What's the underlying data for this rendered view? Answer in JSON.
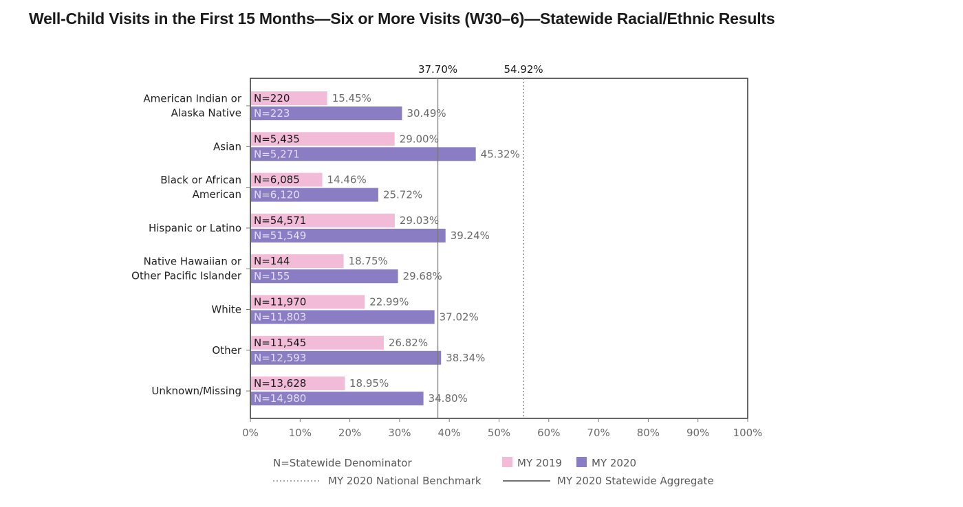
{
  "title": "Well-Child Visits in the First 15 Months—Six or More Visits (W30–6)—Statewide Racial/Ethnic Results",
  "colors": {
    "my2019": "#f2bcd8",
    "my2020": "#8a7dc3",
    "axis": "#333333",
    "grid_text": "#6b6b6b"
  },
  "chart_data": {
    "type": "bar",
    "orientation": "horizontal",
    "categories": [
      [
        "American Indian or",
        "Alaska Native"
      ],
      [
        "Asian"
      ],
      [
        "Black or African",
        "American"
      ],
      [
        "Hispanic or Latino"
      ],
      [
        "Native Hawaiian or",
        "Other Pacific Islander"
      ],
      [
        "White"
      ],
      [
        "Other"
      ],
      [
        "Unknown/Missing"
      ]
    ],
    "series": [
      {
        "name": "MY 2019",
        "values": [
          15.45,
          29.0,
          14.46,
          29.03,
          18.75,
          22.99,
          26.82,
          18.95
        ],
        "value_labels": [
          "15.45%",
          "29.00%",
          "14.46%",
          "29.03%",
          "18.75%",
          "22.99%",
          "26.82%",
          "18.95%"
        ],
        "n_labels": [
          "N=220",
          "N=5,435",
          "N=6,085",
          "N=54,571",
          "N=144",
          "N=11,970",
          "N=11,545",
          "N=13,628"
        ]
      },
      {
        "name": "MY 2020",
        "values": [
          30.49,
          45.32,
          25.72,
          39.24,
          29.68,
          37.02,
          38.34,
          34.8
        ],
        "value_labels": [
          "30.49%",
          "45.32%",
          "25.72%",
          "39.24%",
          "29.68%",
          "37.02%",
          "38.34%",
          "34.80%"
        ],
        "n_labels": [
          "N=223",
          "N=5,271",
          "N=6,120",
          "N=51,549",
          "N=155",
          "N=11,803",
          "N=12,593",
          "N=14,980"
        ]
      }
    ],
    "xlim": [
      0,
      100
    ],
    "x_ticks": [
      "0%",
      "10%",
      "20%",
      "30%",
      "40%",
      "50%",
      "60%",
      "70%",
      "80%",
      "90%",
      "100%"
    ],
    "reference_lines": [
      {
        "name": "MY 2020 Statewide Aggregate",
        "value": 37.7,
        "label": "37.70%",
        "style": "solid"
      },
      {
        "name": "MY 2020 National Benchmark",
        "value": 54.92,
        "label": "54.92%",
        "style": "dotted"
      }
    ],
    "legend": {
      "placement": "bottom",
      "n_note": "N=Statewide Denominator",
      "my2019": "MY 2019",
      "my2020": "MY 2020",
      "benchmark": "MY 2020 National Benchmark",
      "aggregate": "MY 2020 Statewide Aggregate"
    }
  }
}
